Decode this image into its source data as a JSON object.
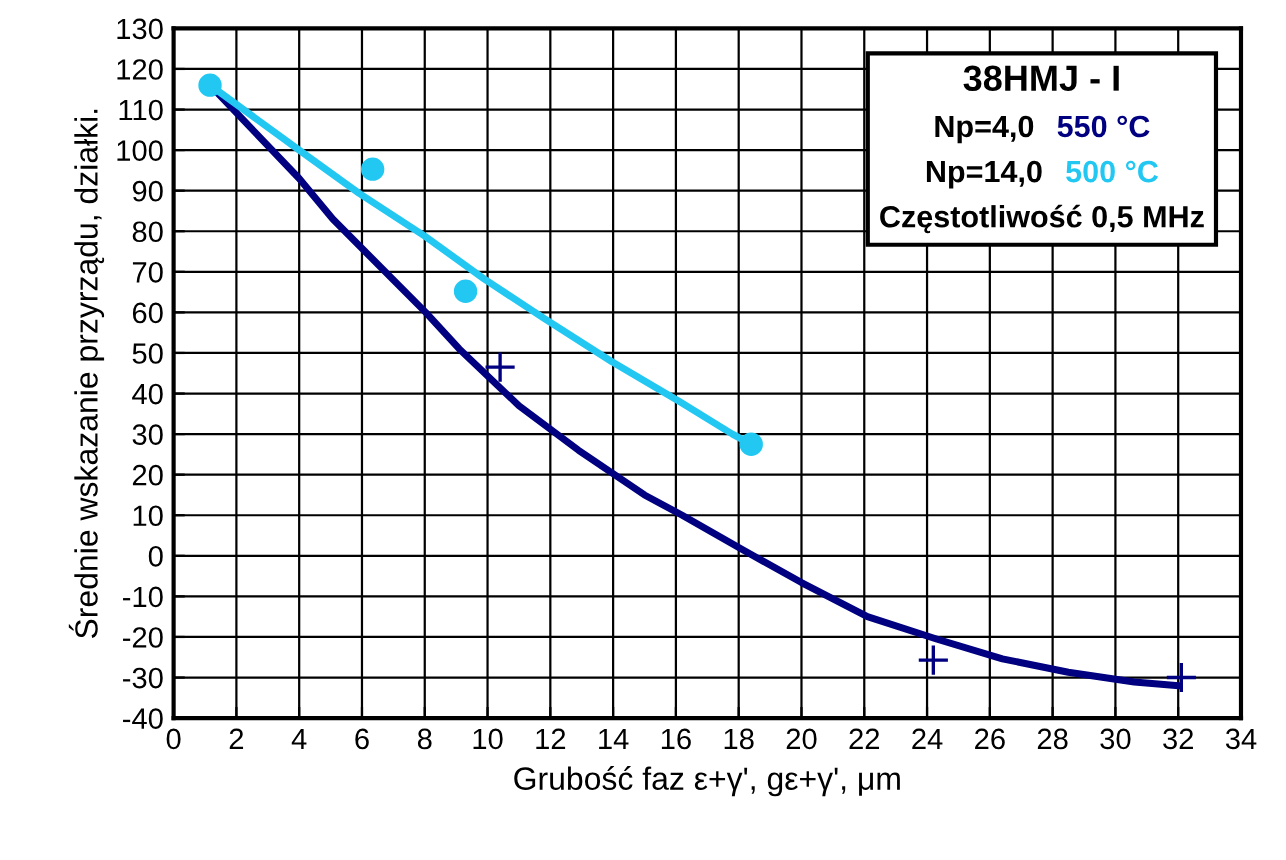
{
  "chart_data": {
    "type": "line",
    "title": "38HMJ - I",
    "xlabel": "Grubość faz ε+γ', gε+γ', μm",
    "ylabel": "Średnie wskazanie przyrządu, działki.",
    "annotations": [
      "Np=4,0",
      "Np=14,0",
      "Częstotliwość 0,5 MHz"
    ],
    "series": [
      {
        "name": "550 °C",
        "color": "#000080",
        "marker": "none",
        "x": [
          1.16,
          4.0,
          5.07,
          8.03,
          9.1,
          11.0,
          12.9,
          15.0,
          16.2,
          18.1,
          20.0,
          22.1,
          24.3,
          26.4,
          28.5,
          30.6,
          32.0
        ],
        "values": [
          116,
          93,
          83,
          60,
          51,
          37,
          26,
          15,
          10,
          1.6,
          -6.6,
          -15,
          -20.5,
          -25.4,
          -28.7,
          -31.1,
          -32
        ]
      },
      {
        "type": "scatter",
        "color": "#000080",
        "marker": "cross",
        "x": [
          10.4,
          24.2,
          32.1
        ],
        "values": [
          46.5,
          -25.7,
          -30
        ]
      },
      {
        "name": "500 °C",
        "color": "#22c8f2",
        "marker": "none",
        "x": [
          1.16,
          4.0,
          5.9,
          8.0,
          9.9,
          11.8,
          13.95,
          16.1,
          17.8,
          18.4
        ],
        "values": [
          116,
          100,
          89.4,
          78.8,
          68.2,
          58.5,
          47.9,
          38.1,
          30,
          27.5
        ]
      },
      {
        "type": "scatter",
        "color": "#22c8f2",
        "marker": "circle",
        "x": [
          1.16,
          6.34,
          9.3,
          18.4
        ],
        "values": [
          116,
          95.3,
          65.2,
          27.5
        ]
      }
    ],
    "xlim": [
      0,
      34
    ],
    "xticks": [
      0,
      2,
      4,
      6,
      8,
      10,
      12,
      14,
      16,
      18,
      20,
      22,
      24,
      26,
      28,
      30,
      32,
      34
    ],
    "ylim": [
      -40,
      130
    ],
    "yticks": [
      -40,
      -30,
      -20,
      -10,
      0,
      10,
      20,
      30,
      40,
      50,
      60,
      70,
      80,
      90,
      100,
      110,
      120,
      130
    ],
    "grid": true,
    "legend": "top right"
  }
}
